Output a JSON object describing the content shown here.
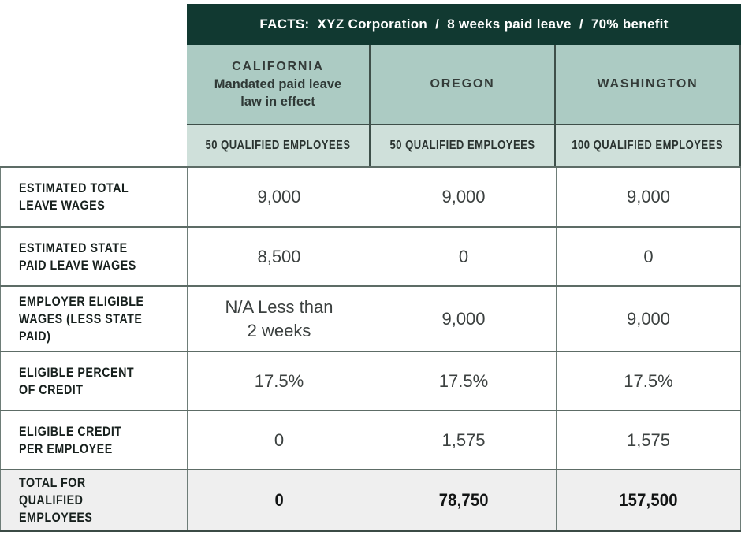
{
  "table": {
    "facts_header": "FACTS:  XYZ Corporation  /  8 weeks paid leave  /  70% benefit",
    "columns": [
      {
        "state": "CALIFORNIA",
        "subtitle": "Mandated paid leave\nlaw in effect",
        "qualified": "50 QUALIFIED EMPLOYEES"
      },
      {
        "state": "OREGON",
        "subtitle": "",
        "qualified": "50 QUALIFIED EMPLOYEES"
      },
      {
        "state": "WASHINGTON",
        "subtitle": "",
        "qualified": "100 QUALIFIED EMPLOYEES"
      }
    ],
    "rows": [
      {
        "label": "ESTIMATED TOTAL\nLEAVE WAGES",
        "values": [
          "9,000",
          "9,000",
          "9,000"
        ]
      },
      {
        "label": "ESTIMATED STATE\nPAID LEAVE WAGES",
        "values": [
          "8,500",
          "0",
          "0"
        ]
      },
      {
        "label": "EMPLOYER ELIGIBLE\nWAGES (LESS STATE PAID)",
        "values": [
          "N/A Less than\n2 weeks",
          "9,000",
          "9,000"
        ]
      },
      {
        "label": "ELIGIBLE PERCENT\nOF CREDIT",
        "values": [
          "17.5%",
          "17.5%",
          "17.5%"
        ]
      },
      {
        "label": "ELIGIBLE CREDIT\nPER EMPLOYEE",
        "values": [
          "0",
          "1,575",
          "1,575"
        ]
      },
      {
        "label": "TOTAL FOR\nQUALIFIED EMPLOYEES",
        "values": [
          "0",
          "78,750",
          "157,500"
        ]
      }
    ]
  },
  "colors": {
    "header_dark_green": "#113931",
    "state_row_sage": "#accbc3",
    "qualified_row_sage": "#cfe0da",
    "total_row_gray": "#efefef",
    "header_border": "#3e4f49",
    "body_border": "#6e7d78",
    "row_divider": "#5d6c66",
    "facts_text": "#ffffff",
    "body_text": "#3c4140",
    "label_text": "#17201d"
  },
  "chart_data": {
    "type": "table",
    "title": "FACTS: XYZ Corporation / 8 weeks paid leave / 70% benefit",
    "column_headers": [
      {
        "state": "CALIFORNIA",
        "note": "Mandated paid leave law in effect",
        "qualified_employees": "50 QUALIFIED EMPLOYEES"
      },
      {
        "state": "OREGON",
        "note": "",
        "qualified_employees": "50 QUALIFIED EMPLOYEES"
      },
      {
        "state": "WASHINGTON",
        "note": "",
        "qualified_employees": "100 QUALIFIED EMPLOYEES"
      }
    ],
    "row_labels": [
      "ESTIMATED TOTAL LEAVE WAGES",
      "ESTIMATED STATE PAID LEAVE WAGES",
      "EMPLOYER ELIGIBLE WAGES (LESS STATE PAID)",
      "ELIGIBLE PERCENT OF CREDIT",
      "ELIGIBLE CREDIT PER EMPLOYEE",
      "TOTAL FOR QUALIFIED EMPLOYEES"
    ],
    "rows": [
      [
        "9,000",
        "9,000",
        "9,000"
      ],
      [
        "8,500",
        "0",
        "0"
      ],
      [
        "N/A Less than 2 weeks",
        "9,000",
        "9,000"
      ],
      [
        "17.5%",
        "17.5%",
        "17.5%"
      ],
      [
        "0",
        "1,575",
        "1,575"
      ],
      [
        "0",
        "78,750",
        "157,500"
      ]
    ],
    "layout": {
      "grid": "on",
      "total_row_highlighted": true
    }
  }
}
